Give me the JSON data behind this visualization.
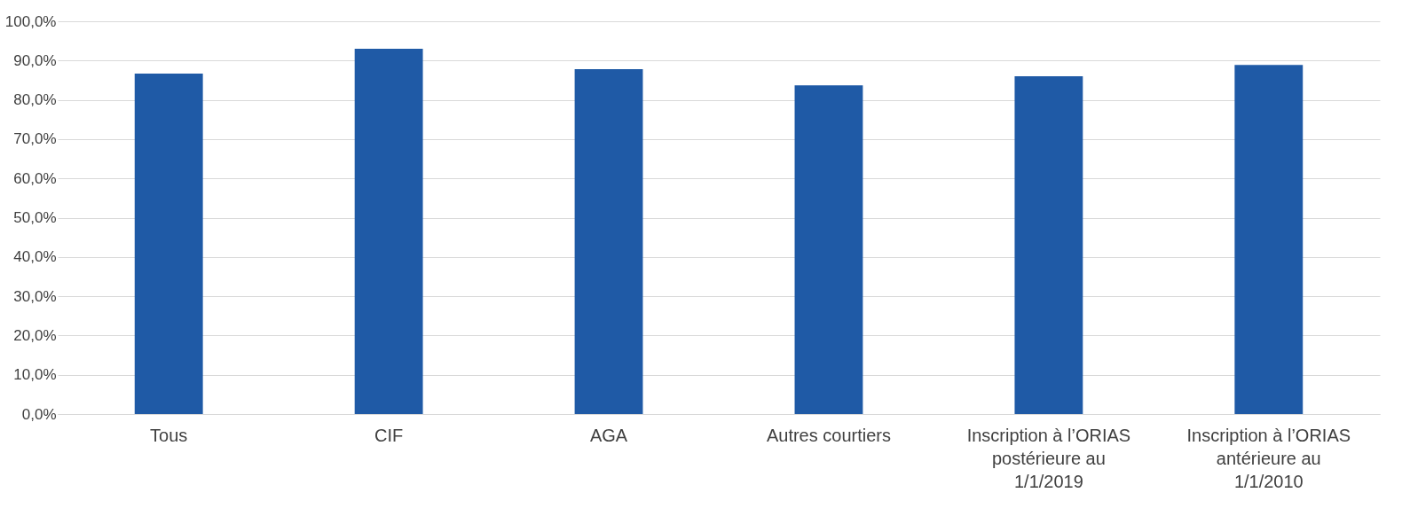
{
  "chart_data": {
    "type": "bar",
    "categories": [
      "Tous",
      "CIF",
      "AGA",
      "Autres courtiers",
      "Inscription à l’ORIAS postérieure au 1/1/2019",
      "Inscription à l’ORIAS antérieure au 1/1/2010"
    ],
    "values": [
      86.7,
      93.0,
      87.8,
      83.7,
      86.0,
      88.9
    ],
    "color": "#1f5aa6",
    "ylim": [
      0,
      100
    ],
    "yticks": [
      {
        "value": 0,
        "label": "0,0%"
      },
      {
        "value": 10,
        "label": "10,0%"
      },
      {
        "value": 20,
        "label": "20,0%"
      },
      {
        "value": 30,
        "label": "30,0%"
      },
      {
        "value": 40,
        "label": "40,0%"
      },
      {
        "value": 50,
        "label": "50,0%"
      },
      {
        "value": 60,
        "label": "60,0%"
      },
      {
        "value": 70,
        "label": "70,0%"
      },
      {
        "value": 80,
        "label": "80,0%"
      },
      {
        "value": 90,
        "label": "90,0%"
      },
      {
        "value": 100,
        "label": "100,0%"
      }
    ],
    "grid": "y"
  }
}
